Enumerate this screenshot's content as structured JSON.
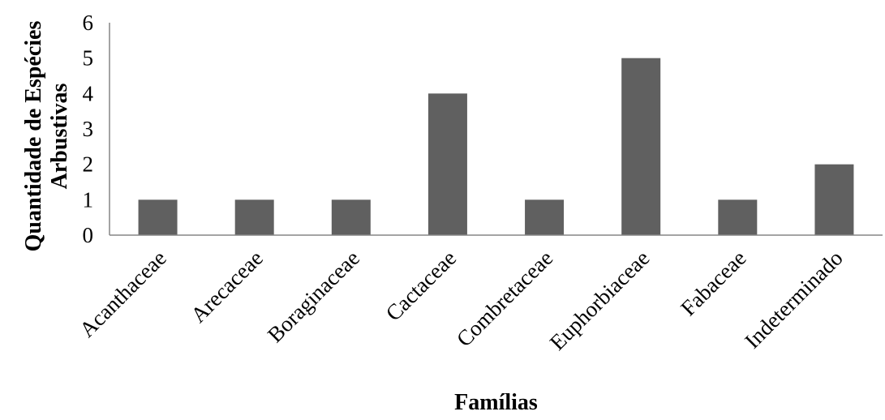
{
  "chart_data": {
    "type": "bar",
    "categories": [
      "Acanthaceae",
      "Arecaceae",
      "Boraginaceae",
      "Cactaceae",
      "Combretaceae",
      "Euphorbiaceae",
      "Fabaceae",
      "Indeterminado"
    ],
    "values": [
      1,
      1,
      1,
      4,
      1,
      5,
      1,
      2
    ],
    "xlabel": "Famílias",
    "ylabel_lines": [
      "Quantidade de Espécies",
      "Arbustivas"
    ],
    "ylim": [
      0,
      6
    ],
    "yticks": [
      0,
      1,
      2,
      3,
      4,
      5,
      6
    ],
    "grid": false,
    "bar_color": "#606060",
    "axis_color": "#868686"
  }
}
